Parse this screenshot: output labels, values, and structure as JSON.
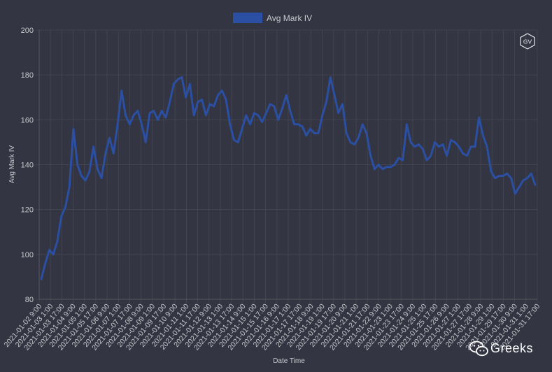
{
  "chart_data": {
    "type": "line",
    "title": "",
    "legend": {
      "position": "top-center",
      "entries": [
        "Avg Mark IV"
      ]
    },
    "xlabel": "Date Time",
    "ylabel": "Avg Mark IV",
    "ylim": [
      80,
      200
    ],
    "yticks": [
      "80",
      "100",
      "120",
      "140",
      "160",
      "180",
      "200"
    ],
    "grid": true,
    "x_tick_labels": [
      "2021-01-02 9:00",
      "2021-01-03 1:00",
      "2021-01-03 17:00",
      "2021-01-04 9:00",
      "2021-01-05 1:00",
      "2021-01-05 17:00",
      "2021-01-06 9:00",
      "2021-01-07 1:00",
      "2021-01-07 17:00",
      "2021-01-08 9:00",
      "2021-01-09 1:00",
      "2021-01-09 17:00",
      "2021-01-10 9:00",
      "2021-01-11 1:00",
      "2021-01-11 17:00",
      "2021-01-12 9:00",
      "2021-01-13 1:00",
      "2021-01-13 17:00",
      "2021-01-14 9:00",
      "2021-01-15 1:00",
      "2021-01-15 17:00",
      "2021-01-16 9:00",
      "2021-01-17 1:00",
      "2021-01-17 17:00",
      "2021-01-18 9:00",
      "2021-01-19 1:00",
      "2021-01-19 17:00",
      "2021-01-20 9:00",
      "2021-01-21 1:00",
      "2021-01-21 17:00",
      "2021-01-22 9:00",
      "2021-01-23 1:00",
      "2021-01-23 17:00",
      "2021-01-24 9:00",
      "2021-01-25 1:00",
      "2021-01-25 17:00",
      "2021-01-26 9:00",
      "2021-01-27 1:00",
      "2021-01-27 17:00",
      "2021-01-28 9:00",
      "2021-01-29 1:00",
      "2021-01-29 17:00",
      "2021-01-30 9:00",
      "2021-01-31 1:00",
      "2021-01-31 17:00"
    ],
    "series": [
      {
        "name": "Avg Mark IV",
        "color": "#2a4fa3",
        "values": [
          89,
          96,
          102,
          100,
          106,
          117,
          121,
          130,
          156,
          140,
          135,
          133,
          137,
          148,
          138,
          134,
          145,
          152,
          145,
          158,
          173,
          162,
          158,
          162,
          164,
          158,
          150,
          163,
          164,
          160,
          164,
          161,
          168,
          176,
          178,
          179,
          170,
          176,
          162,
          168,
          169,
          162,
          167,
          166,
          171,
          173,
          169,
          158,
          151,
          150,
          156,
          162,
          158,
          163,
          162,
          159,
          163,
          167,
          166,
          160,
          165,
          171,
          164,
          158,
          158,
          157,
          153,
          156,
          154,
          154,
          162,
          168,
          179,
          171,
          163,
          167,
          154,
          150,
          149,
          152,
          158,
          154,
          144,
          138,
          140,
          138,
          139,
          139,
          140,
          143,
          142,
          158,
          150,
          148,
          149,
          147,
          142,
          144,
          150,
          148,
          149,
          144,
          151,
          150,
          148,
          145,
          144,
          148,
          148,
          161,
          153,
          148,
          137,
          134,
          135,
          135,
          136,
          134,
          127,
          130,
          133,
          134,
          136,
          131
        ]
      }
    ]
  },
  "watermark": {
    "text": "Greeks",
    "icon": "wechat-icon"
  },
  "logo": {
    "text": "GV",
    "icon": "gv-hexagon-logo"
  }
}
